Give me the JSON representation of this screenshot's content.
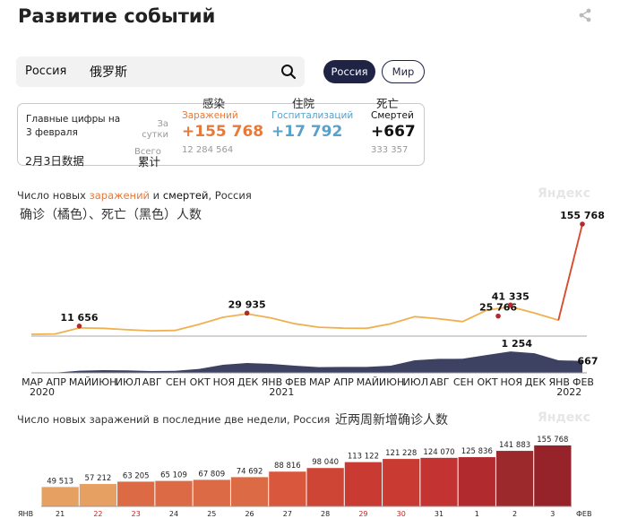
{
  "header": {
    "title": "Развитие событий",
    "share_icon": "share-icon"
  },
  "search": {
    "value": "Россия",
    "cn_annotation": "俄罗斯"
  },
  "region_toggle": {
    "russia": "Россия",
    "world": "Мир"
  },
  "key_figures": {
    "label": "Главные цифры на 3 февраля",
    "cn_label": "2月3日数据",
    "per_day_label": "За сутки",
    "total_label": "Всего",
    "cn_total": "累计",
    "infections": {
      "cn": "感染",
      "label": "Заражений",
      "value": "+155 768",
      "total": "12 284 564",
      "color": "#e57a3b"
    },
    "hospitalizations": {
      "cn": "住院",
      "label": "Госпитализаций",
      "value": "+17 792",
      "color": "#5aa1c9"
    },
    "deaths": {
      "cn": "死亡",
      "label": "Смертей",
      "value": "+667",
      "total": "333 357",
      "color": "#111111"
    }
  },
  "main_chart_header": {
    "title_pre": "Число новых ",
    "title_hl": "заражений",
    "title_mid": " и ",
    "title_bold": "смертей",
    "title_post": ", Россия",
    "cn": "确诊（橘色）、死亡（黑色）人数",
    "watermark": "Яндекс"
  },
  "chart_data": [
    {
      "type": "area",
      "title": "Число новых заражений и смертей, Россия",
      "series": [
        {
          "name": "заражений",
          "color": "#f0b04f",
          "x": [
            "2020-03",
            "2020-04",
            "2020-05",
            "2020-06",
            "2020-07",
            "2020-08",
            "2020-09",
            "2020-10",
            "2020-11",
            "2020-12",
            "2021-01",
            "2021-02",
            "2021-03",
            "2021-04",
            "2021-05",
            "2021-06",
            "2021-07",
            "2021-08",
            "2021-09",
            "2021-10",
            "2021-11",
            "2021-12",
            "2022-01",
            "2022-02-03"
          ],
          "values": [
            0,
            500,
            9000,
            8500,
            6500,
            5000,
            5500,
            14000,
            24000,
            29000,
            23000,
            15000,
            10000,
            8700,
            8500,
            15000,
            25000,
            22000,
            18000,
            34000,
            39000,
            30000,
            20000,
            155768
          ]
        },
        {
          "name": "смертей",
          "color": "#3d4262",
          "values": [
            0,
            10,
            120,
            150,
            140,
            100,
            110,
            220,
            450,
            550,
            500,
            400,
            320,
            330,
            330,
            400,
            700,
            780,
            790,
            1000,
            1200,
            1100,
            700,
            667
          ]
        }
      ],
      "annotations": [
        {
          "label": "11 656",
          "series": "заражений"
        },
        {
          "label": "29 935",
          "series": "заражений"
        },
        {
          "label": "25 766",
          "series": "заражений"
        },
        {
          "label": "41 335",
          "series": "заражений"
        },
        {
          "label": "155 768",
          "series": "заражений"
        },
        {
          "label": "1 254",
          "series": "смертей"
        },
        {
          "label": "667",
          "series": "смертей"
        }
      ],
      "x_ticks": [
        "МАР",
        "АПР",
        "МАЙ",
        "ИЮН",
        "ИЮЛ",
        "АВГ",
        "СЕН",
        "ОКТ",
        "НОЯ",
        "ДЕК",
        "ЯНВ",
        "ФЕВ",
        "МАР",
        "АПР",
        "МАЙ",
        "ИЮН",
        "ИЮЛ",
        "АВГ",
        "СЕН",
        "ОКТ",
        "НОЯ",
        "ДЕК",
        "ЯНВ",
        "ФЕВ"
      ],
      "year_labels": [
        "2020",
        "2021",
        "2022"
      ]
    },
    {
      "type": "bar",
      "title": "Число новых заражений в последние две недели, Россия",
      "categories": [
        "21",
        "22",
        "23",
        "24",
        "25",
        "26",
        "27",
        "28",
        "29",
        "30",
        "31",
        "1",
        "2",
        "3"
      ],
      "weekend": [
        false,
        true,
        true,
        false,
        false,
        false,
        false,
        false,
        true,
        true,
        false,
        false,
        false,
        false
      ],
      "values": [
        49513,
        57212,
        63205,
        65109,
        67809,
        74692,
        88816,
        98040,
        113122,
        121228,
        124070,
        125836,
        141883,
        155768
      ],
      "labels": [
        "49 513",
        "57 212",
        "63 205",
        "65 109",
        "67 809",
        "74 692",
        "88 816",
        "98 040",
        "113 122",
        "121 228",
        "124 070",
        "125 836",
        "141 883",
        "155 768"
      ],
      "colors": [
        "#e6a062",
        "#e6a062",
        "#dc6a45",
        "#dc6a45",
        "#dc6a45",
        "#dc6a45",
        "#d9573d",
        "#cf4535",
        "#c93b32",
        "#c93b32",
        "#c23331",
        "#b02a2e",
        "#9c2a2c",
        "#962329"
      ],
      "x_start": "ЯНВ",
      "x_end": "ФЕВ"
    }
  ],
  "bar_chart_header": {
    "title": "Число новых заражений в последние две недели, Россия",
    "cn": "近两周新增确诊人数",
    "watermark": "Яндекс"
  }
}
